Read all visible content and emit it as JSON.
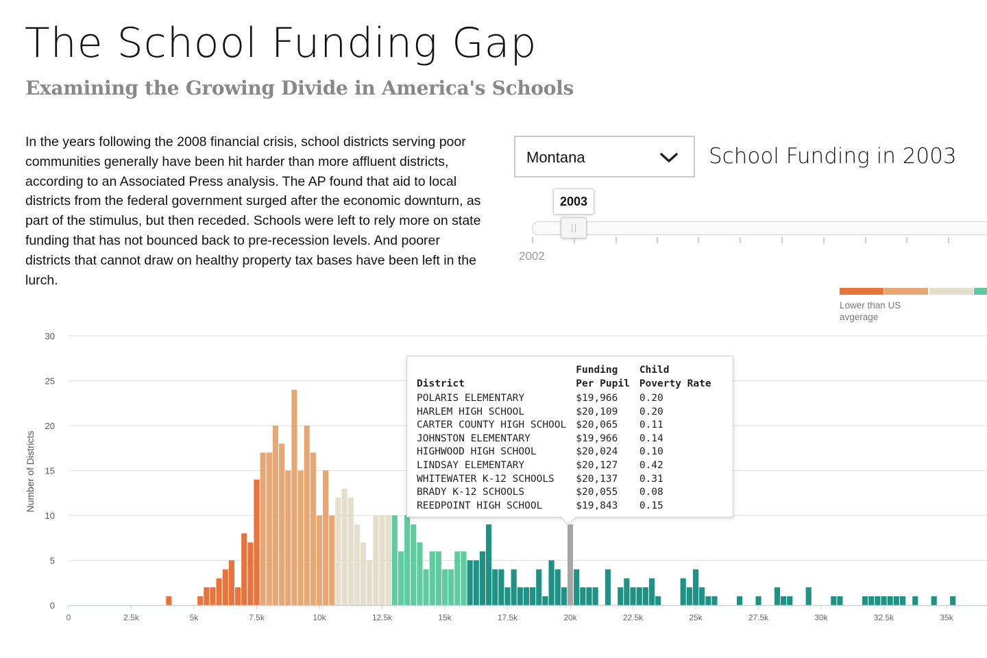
{
  "header": {
    "title": "The School Funding Gap",
    "subtitle": "Examining the Growing Divide in America's Schools"
  },
  "intro": "In the years following the 2008 financial crisis, school districts serving poor communities generally have been hit harder than more affluent districts, according to an Associated Press analysis. The AP found that aid to local districts from the federal government surged after the economic downturn, as part of the stimulus, but then receded. Schools were left to rely more on state funding that has not bounced back to pre-recession levels. And poorer districts that cannot draw on healthy property tax bases have been left in the lurch.",
  "controls": {
    "state_value": "Montana",
    "heading": "School Funding in 2003",
    "slider_value": "2003",
    "slider_start_label": "2002",
    "icons": {
      "dropdown": "chevron-down-icon"
    }
  },
  "legend": {
    "label": "Lower than US avgerage",
    "colors": [
      "#E8743B",
      "#E8A673",
      "#E4DFCC",
      "#5FCBA0"
    ]
  },
  "colors": {
    "dark_orange": "#E8743B",
    "light_orange": "#E8A673",
    "beige": "#E4DFCC",
    "light_teal": "#5FCBA0",
    "dark_teal": "#1E9284",
    "highlight": "#A6A6A6"
  },
  "tooltip": {
    "headers": {
      "district": "District",
      "funding": [
        "Funding",
        "Per Pupil"
      ],
      "poverty": [
        "Child",
        "Poverty Rate"
      ]
    },
    "rows": [
      [
        "POLARIS ELEMENTARY",
        "$19,966",
        "0.20"
      ],
      [
        "HARLEM HIGH SCHOOL",
        "$20,109",
        "0.20"
      ],
      [
        "CARTER COUNTY HIGH SCHOOL",
        "$20,065",
        "0.11"
      ],
      [
        "JOHNSTON ELEMENTARY",
        "$19,966",
        "0.14"
      ],
      [
        "HIGHWOOD HIGH SCHOOL",
        "$20,024",
        "0.10"
      ],
      [
        "LINDSAY ELEMENTARY",
        "$20,127",
        "0.42"
      ],
      [
        "WHITEWATER K-12 SCHOOLS",
        "$20,137",
        "0.31"
      ],
      [
        "BRADY K-12 SCHOOLS",
        "$20,055",
        "0.08"
      ],
      [
        "REEDPOINT HIGH SCHOOL",
        "$19,843",
        "0.15"
      ]
    ]
  },
  "chart_data": {
    "type": "bar",
    "title": "",
    "xlabel": "",
    "ylabel": "Number of Districts",
    "bin_width": 250,
    "xlim": [
      0,
      36500
    ],
    "ylim": [
      0,
      30
    ],
    "x_ticks": [
      0,
      2500,
      5000,
      7500,
      10000,
      12500,
      15000,
      17500,
      20000,
      22500,
      25000,
      27500,
      30000,
      32500,
      35000
    ],
    "x_tick_labels": [
      "0",
      "2.5k",
      "5k",
      "7.5k",
      "10k",
      "12.5k",
      "15k",
      "17.5k",
      "20k",
      "22.5k",
      "25k",
      "27.5k",
      "30k",
      "32.5k",
      "35k"
    ],
    "y_ticks": [
      0,
      5,
      10,
      15,
      20,
      25,
      30
    ],
    "highlight_bin": 20000,
    "bins": [
      {
        "x": 4000,
        "count": 1,
        "group": "dark_orange"
      },
      {
        "x": 5250,
        "count": 1,
        "group": "dark_orange"
      },
      {
        "x": 5500,
        "count": 2,
        "group": "dark_orange"
      },
      {
        "x": 5750,
        "count": 2,
        "group": "dark_orange"
      },
      {
        "x": 6000,
        "count": 3,
        "group": "dark_orange"
      },
      {
        "x": 6250,
        "count": 4,
        "group": "dark_orange"
      },
      {
        "x": 6500,
        "count": 5,
        "group": "dark_orange"
      },
      {
        "x": 6750,
        "count": 2,
        "group": "dark_orange"
      },
      {
        "x": 7000,
        "count": 8,
        "group": "dark_orange"
      },
      {
        "x": 7250,
        "count": 7,
        "group": "dark_orange"
      },
      {
        "x": 7500,
        "count": 14,
        "group": "dark_orange"
      },
      {
        "x": 7750,
        "count": 17,
        "group": "light_orange"
      },
      {
        "x": 8000,
        "count": 17,
        "group": "light_orange"
      },
      {
        "x": 8250,
        "count": 20,
        "group": "light_orange"
      },
      {
        "x": 8500,
        "count": 18,
        "group": "light_orange"
      },
      {
        "x": 8750,
        "count": 15,
        "group": "light_orange"
      },
      {
        "x": 9000,
        "count": 24,
        "group": "light_orange"
      },
      {
        "x": 9250,
        "count": 15,
        "group": "light_orange"
      },
      {
        "x": 9500,
        "count": 20,
        "group": "light_orange"
      },
      {
        "x": 9750,
        "count": 17,
        "group": "light_orange"
      },
      {
        "x": 10000,
        "count": 10,
        "group": "light_orange"
      },
      {
        "x": 10250,
        "count": 15,
        "group": "light_orange"
      },
      {
        "x": 10500,
        "count": 10,
        "group": "light_orange"
      },
      {
        "x": 10750,
        "count": 12,
        "group": "beige"
      },
      {
        "x": 11000,
        "count": 13,
        "group": "beige"
      },
      {
        "x": 11250,
        "count": 12,
        "group": "beige"
      },
      {
        "x": 11500,
        "count": 9,
        "group": "beige"
      },
      {
        "x": 11750,
        "count": 7,
        "group": "beige"
      },
      {
        "x": 12000,
        "count": 5,
        "group": "beige"
      },
      {
        "x": 12250,
        "count": 10,
        "group": "beige"
      },
      {
        "x": 12500,
        "count": 10,
        "group": "beige"
      },
      {
        "x": 12750,
        "count": 10,
        "group": "beige"
      },
      {
        "x": 13000,
        "count": 10,
        "group": "light_teal"
      },
      {
        "x": 13250,
        "count": 6,
        "group": "light_teal"
      },
      {
        "x": 13500,
        "count": 10,
        "group": "light_teal"
      },
      {
        "x": 13750,
        "count": 9,
        "group": "light_teal"
      },
      {
        "x": 14000,
        "count": 7,
        "group": "light_teal"
      },
      {
        "x": 14250,
        "count": 4,
        "group": "light_teal"
      },
      {
        "x": 14500,
        "count": 6,
        "group": "light_teal"
      },
      {
        "x": 14750,
        "count": 6,
        "group": "light_teal"
      },
      {
        "x": 15000,
        "count": 4,
        "group": "light_teal"
      },
      {
        "x": 15250,
        "count": 4,
        "group": "light_teal"
      },
      {
        "x": 15500,
        "count": 6,
        "group": "light_teal"
      },
      {
        "x": 15750,
        "count": 6,
        "group": "light_teal"
      },
      {
        "x": 16000,
        "count": 5,
        "group": "dark_teal"
      },
      {
        "x": 16250,
        "count": 5,
        "group": "dark_teal"
      },
      {
        "x": 16500,
        "count": 6,
        "group": "dark_teal"
      },
      {
        "x": 16750,
        "count": 9,
        "group": "dark_teal"
      },
      {
        "x": 17000,
        "count": 4,
        "group": "dark_teal"
      },
      {
        "x": 17250,
        "count": 4,
        "group": "dark_teal"
      },
      {
        "x": 17500,
        "count": 2,
        "group": "dark_teal"
      },
      {
        "x": 17750,
        "count": 4,
        "group": "dark_teal"
      },
      {
        "x": 18000,
        "count": 2,
        "group": "dark_teal"
      },
      {
        "x": 18250,
        "count": 2,
        "group": "dark_teal"
      },
      {
        "x": 18500,
        "count": 2,
        "group": "dark_teal"
      },
      {
        "x": 18750,
        "count": 4,
        "group": "dark_teal"
      },
      {
        "x": 19000,
        "count": 1,
        "group": "dark_teal"
      },
      {
        "x": 19250,
        "count": 5,
        "group": "dark_teal"
      },
      {
        "x": 19500,
        "count": 4,
        "group": "dark_teal"
      },
      {
        "x": 19750,
        "count": 2,
        "group": "dark_teal"
      },
      {
        "x": 20000,
        "count": 9,
        "group": "highlight"
      },
      {
        "x": 20250,
        "count": 4,
        "group": "dark_teal"
      },
      {
        "x": 20500,
        "count": 2,
        "group": "dark_teal"
      },
      {
        "x": 20750,
        "count": 2,
        "group": "dark_teal"
      },
      {
        "x": 21000,
        "count": 2,
        "group": "dark_teal"
      },
      {
        "x": 21500,
        "count": 4,
        "group": "dark_teal"
      },
      {
        "x": 22000,
        "count": 2,
        "group": "dark_teal"
      },
      {
        "x": 22250,
        "count": 3,
        "group": "dark_teal"
      },
      {
        "x": 22500,
        "count": 2,
        "group": "dark_teal"
      },
      {
        "x": 22750,
        "count": 2,
        "group": "dark_teal"
      },
      {
        "x": 23000,
        "count": 2,
        "group": "dark_teal"
      },
      {
        "x": 23250,
        "count": 3,
        "group": "dark_teal"
      },
      {
        "x": 23500,
        "count": 1,
        "group": "dark_teal"
      },
      {
        "x": 24500,
        "count": 3,
        "group": "dark_teal"
      },
      {
        "x": 24750,
        "count": 2,
        "group": "dark_teal"
      },
      {
        "x": 25000,
        "count": 4,
        "group": "dark_teal"
      },
      {
        "x": 25250,
        "count": 2,
        "group": "dark_teal"
      },
      {
        "x": 25500,
        "count": 1,
        "group": "dark_teal"
      },
      {
        "x": 25750,
        "count": 1,
        "group": "dark_teal"
      },
      {
        "x": 26750,
        "count": 1,
        "group": "dark_teal"
      },
      {
        "x": 27500,
        "count": 1,
        "group": "dark_teal"
      },
      {
        "x": 28250,
        "count": 2,
        "group": "dark_teal"
      },
      {
        "x": 28500,
        "count": 1,
        "group": "dark_teal"
      },
      {
        "x": 28750,
        "count": 1,
        "group": "dark_teal"
      },
      {
        "x": 29500,
        "count": 2,
        "group": "dark_teal"
      },
      {
        "x": 30500,
        "count": 1,
        "group": "dark_teal"
      },
      {
        "x": 30750,
        "count": 1,
        "group": "dark_teal"
      },
      {
        "x": 31750,
        "count": 1,
        "group": "dark_teal"
      },
      {
        "x": 32000,
        "count": 1,
        "group": "dark_teal"
      },
      {
        "x": 32250,
        "count": 1,
        "group": "dark_teal"
      },
      {
        "x": 32500,
        "count": 1,
        "group": "dark_teal"
      },
      {
        "x": 32750,
        "count": 1,
        "group": "dark_teal"
      },
      {
        "x": 33000,
        "count": 1,
        "group": "dark_teal"
      },
      {
        "x": 33250,
        "count": 1,
        "group": "dark_teal"
      },
      {
        "x": 33750,
        "count": 1,
        "group": "dark_teal"
      },
      {
        "x": 34500,
        "count": 1,
        "group": "dark_teal"
      },
      {
        "x": 35250,
        "count": 1,
        "group": "dark_teal"
      }
    ]
  }
}
